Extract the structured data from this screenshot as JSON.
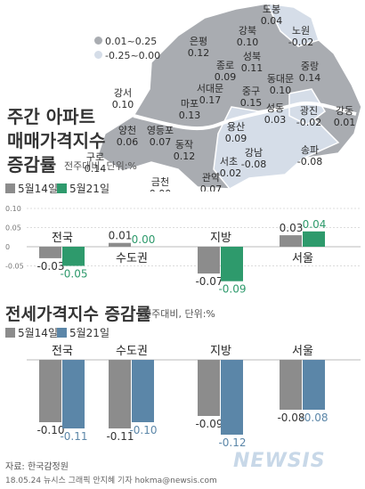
{
  "map": {
    "legend": [
      {
        "label": "0.01~0.25",
        "color": "#a9acb1"
      },
      {
        "label": "-0.25~0.00",
        "color": "#d5dde8"
      }
    ],
    "districts": [
      {
        "name": "도봉",
        "value": "0.04"
      },
      {
        "name": "강북",
        "value": "0.10"
      },
      {
        "name": "노원",
        "value": "-0.02"
      },
      {
        "name": "은평",
        "value": "0.12"
      },
      {
        "name": "성북",
        "value": "0.11"
      },
      {
        "name": "중랑",
        "value": "0.14"
      },
      {
        "name": "종로",
        "value": "0.09"
      },
      {
        "name": "서대문",
        "value": "0.17"
      },
      {
        "name": "동대문",
        "value": "0.10"
      },
      {
        "name": "강서",
        "value": "0.10"
      },
      {
        "name": "마포",
        "value": "0.13"
      },
      {
        "name": "중구",
        "value": "0.15"
      },
      {
        "name": "성동",
        "value": "0.03"
      },
      {
        "name": "광진",
        "value": "-0.02"
      },
      {
        "name": "강동",
        "value": "0.01"
      },
      {
        "name": "양천",
        "value": "0.06"
      },
      {
        "name": "영등포",
        "value": "0.07"
      },
      {
        "name": "용산",
        "value": "0.09"
      },
      {
        "name": "구로",
        "value": "0.14"
      },
      {
        "name": "동작",
        "value": "0.12"
      },
      {
        "name": "송파",
        "value": "-0.08"
      },
      {
        "name": "강남",
        "value": "-0.08"
      },
      {
        "name": "금천",
        "value": "0.00"
      },
      {
        "name": "관악",
        "value": "0.07"
      },
      {
        "name": "서초",
        "value": "-0.02"
      }
    ]
  },
  "section1": {
    "title_lines": [
      "주간 아파트",
      "매매가격지수",
      "증감률"
    ],
    "subtitle": "전주대비, 단위:%",
    "legend": [
      {
        "label": "5월14일",
        "color": "#8c8c8c"
      },
      {
        "label": "5월21일",
        "color": "#2e9a6c"
      }
    ]
  },
  "section2": {
    "title": "전세가격지수 증감률",
    "subtitle": "전주대비, 단위:%",
    "legend": [
      {
        "label": "5월14일",
        "color": "#8c8c8c"
      },
      {
        "label": "5월21일",
        "color": "#5b86a8"
      }
    ]
  },
  "chart_data": [
    {
      "type": "bar",
      "title": "주간 아파트 매매가격지수 증감률",
      "subtitle": "전주대비, 단위:%",
      "categories": [
        "전국",
        "수도권",
        "지방",
        "서울"
      ],
      "series": [
        {
          "name": "5월14일",
          "values": [
            -0.03,
            0.01,
            -0.07,
            0.03
          ],
          "labels": [
            "-0.03",
            "0.01",
            "-0.07",
            "0.03"
          ]
        },
        {
          "name": "5월21일",
          "values": [
            -0.05,
            0.0,
            -0.09,
            0.04
          ],
          "labels": [
            "-0.05",
            "0.00",
            "-0.09",
            "0.04"
          ]
        }
      ],
      "ylim": [
        -0.1,
        0.1
      ],
      "yticks": [
        "0.10",
        "0.05",
        "0",
        "-0.05"
      ]
    },
    {
      "type": "bar",
      "title": "전세가격지수 증감률",
      "subtitle": "전주대비, 단위:%",
      "categories": [
        "전국",
        "수도권",
        "지방",
        "서울"
      ],
      "series": [
        {
          "name": "5월14일",
          "values": [
            -0.1,
            -0.11,
            -0.09,
            -0.08
          ],
          "labels": [
            "-0.10",
            "-0.11",
            "-0.09",
            "-0.08"
          ]
        },
        {
          "name": "5월21일",
          "values": [
            -0.11,
            -0.1,
            -0.12,
            -0.08
          ],
          "labels": [
            "-0.11",
            "-0.10",
            "-0.12",
            "-0.08"
          ]
        }
      ]
    }
  ],
  "footer": {
    "source": "자료: 한국감정원",
    "credit": "18.05.24 뉴시스 그래픽 안지혜 기자 hokma@newsis.com",
    "logo": "NEWSIS"
  }
}
